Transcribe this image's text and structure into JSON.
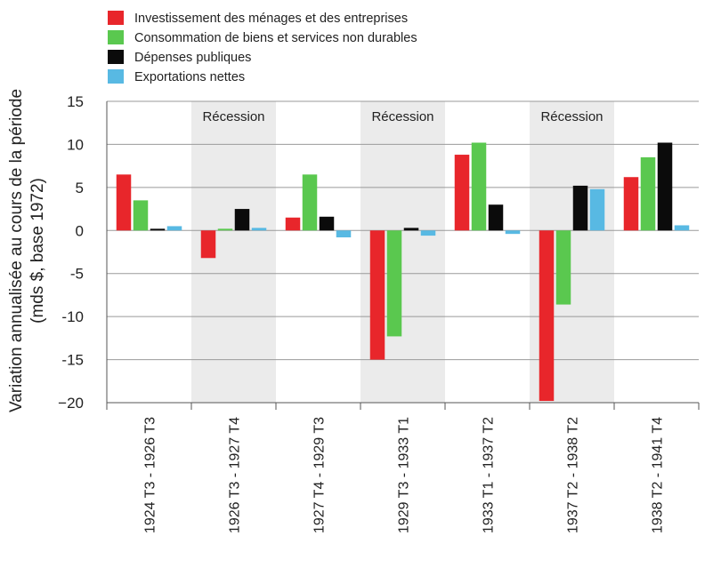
{
  "chart_data": {
    "type": "bar",
    "title": "",
    "xlabel": "",
    "ylabel_line1": "Variation annualisée au cours de la période",
    "ylabel_line2": "(mds $, base 1972)",
    "ylim": [
      -20,
      15
    ],
    "yticks": [
      15,
      10,
      5,
      0,
      -5,
      -10,
      -15,
      -20
    ],
    "ytick_labels": [
      "15",
      "10",
      "5",
      "0",
      "-5",
      "-10",
      "-15",
      "−20"
    ],
    "grid": true,
    "legend_position": "top-left",
    "categories": [
      "1924 T3 - 1926 T3",
      "1926 T3 - 1927 T4",
      "1927 T4 - 1929 T3",
      "1929 T3 - 1933 T1",
      "1933 T1 - 1937 T2",
      "1937 T2 - 1938 T2",
      "1938 T2 - 1941 T4"
    ],
    "shaded_periods": [
      {
        "category_index": 1,
        "label": "Récession"
      },
      {
        "category_index": 3,
        "label": "Récession"
      },
      {
        "category_index": 5,
        "label": "Récession"
      }
    ],
    "series": [
      {
        "name": "Investissement des ménages et des entreprises",
        "color": "#e8262b",
        "values": [
          6.5,
          -3.2,
          1.5,
          -15.0,
          8.8,
          -19.8,
          6.2
        ]
      },
      {
        "name": "Consommation de biens et services non durables",
        "color": "#5ac84f",
        "values": [
          3.5,
          0.2,
          6.5,
          -12.3,
          10.2,
          -8.6,
          8.5
        ]
      },
      {
        "name": "Dépenses publiques",
        "color": "#0b0b0b",
        "values": [
          0.2,
          2.5,
          1.6,
          0.3,
          3.0,
          5.2,
          10.2
        ]
      },
      {
        "name": "Exportations nettes",
        "color": "#58b9e3",
        "values": [
          0.5,
          0.3,
          -0.8,
          -0.6,
          -0.4,
          4.8,
          0.6
        ]
      }
    ]
  }
}
